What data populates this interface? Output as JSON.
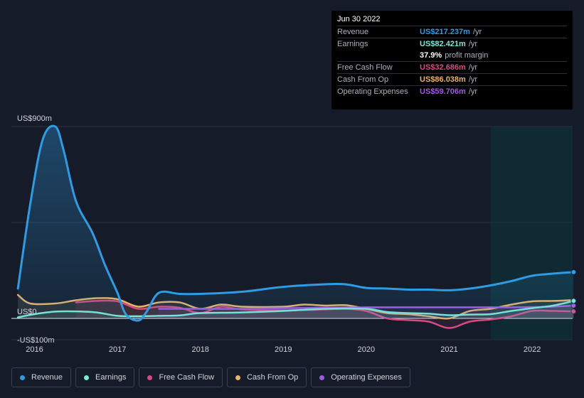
{
  "tooltip": {
    "date": "Jun 30 2022",
    "rows": [
      {
        "label": "Revenue",
        "value": "US$217.237m",
        "unit": "/yr",
        "color": "#2e9be3"
      },
      {
        "label": "Earnings",
        "value": "US$82.421m",
        "unit": "/yr",
        "color": "#7ee8d6"
      },
      {
        "label": "",
        "value": "37.9%",
        "unit": "profit margin",
        "color": "#ffffff"
      },
      {
        "label": "Free Cash Flow",
        "value": "US$32.686m",
        "unit": "/yr",
        "color": "#d84a82"
      },
      {
        "label": "Cash From Op",
        "value": "US$86.038m",
        "unit": "/yr",
        "color": "#e8b36a"
      },
      {
        "label": "Operating Expenses",
        "value": "US$59.706m",
        "unit": "/yr",
        "color": "#a259e8"
      }
    ]
  },
  "chart_data": {
    "type": "line",
    "y_ticks": [
      {
        "value": 900,
        "label": "US$900m"
      },
      {
        "value": 0,
        "label": "US$0"
      },
      {
        "value": -100,
        "label": "-US$100m"
      }
    ],
    "ylim": [
      -100,
      900
    ],
    "xlim": [
      2015.8,
      2022.5
    ],
    "x_ticks": [
      {
        "value": 2016,
        "label": "2016"
      },
      {
        "value": 2017,
        "label": "2017"
      },
      {
        "value": 2018,
        "label": "2018"
      },
      {
        "value": 2019,
        "label": "2019"
      },
      {
        "value": 2020,
        "label": "2020"
      },
      {
        "value": 2021,
        "label": "2021"
      },
      {
        "value": 2022,
        "label": "2022"
      }
    ],
    "highlight_range": [
      2021.5,
      2022.5
    ],
    "grid": true,
    "legend_position": "bottom",
    "series": [
      {
        "name": "Revenue",
        "color": "#2e9be3",
        "fill": true,
        "x": [
          2015.8,
          2015.95,
          2016.1,
          2016.25,
          2016.35,
          2016.5,
          2016.7,
          2016.85,
          2017.0,
          2017.1,
          2017.25,
          2017.35,
          2017.5,
          2017.75,
          2018.0,
          2018.5,
          2019.0,
          2019.5,
          2019.75,
          2020.0,
          2020.25,
          2020.5,
          2020.75,
          2021.0,
          2021.25,
          2021.5,
          2021.75,
          2022.0,
          2022.25,
          2022.5
        ],
        "y": [
          140,
          540,
          840,
          900,
          790,
          550,
          400,
          250,
          120,
          20,
          -10,
          30,
          120,
          115,
          115,
          125,
          148,
          160,
          160,
          143,
          140,
          135,
          135,
          132,
          140,
          155,
          175,
          200,
          210,
          217
        ]
      },
      {
        "name": "Earnings",
        "color": "#7ee8d6",
        "fill": false,
        "x": [
          2015.8,
          2016.0,
          2016.25,
          2016.5,
          2016.75,
          2017.0,
          2017.25,
          2017.5,
          2017.75,
          2018.0,
          2018.5,
          2019.0,
          2019.5,
          2020.0,
          2020.25,
          2020.5,
          2020.75,
          2021.0,
          2021.25,
          2021.5,
          2021.75,
          2022.0,
          2022.25,
          2022.5
        ],
        "y": [
          5,
          20,
          32,
          33,
          28,
          12,
          10,
          12,
          14,
          25,
          28,
          35,
          45,
          45,
          30,
          25,
          22,
          15,
          18,
          20,
          35,
          48,
          60,
          82
        ]
      },
      {
        "name": "Free Cash Flow",
        "color": "#d84a82",
        "fill": false,
        "x": [
          2016.5,
          2016.75,
          2017.0,
          2017.25,
          2017.5,
          2017.75,
          2018.0,
          2018.25,
          2018.5,
          2019.0,
          2019.5,
          2019.75,
          2020.0,
          2020.25,
          2020.5,
          2020.75,
          2021.0,
          2021.25,
          2021.5,
          2021.75,
          2022.0,
          2022.25,
          2022.5
        ],
        "y": [
          75,
          82,
          80,
          45,
          55,
          50,
          25,
          55,
          42,
          38,
          42,
          45,
          35,
          0,
          -8,
          -15,
          -45,
          -15,
          -5,
          10,
          35,
          35,
          33
        ]
      },
      {
        "name": "Cash From Op",
        "color": "#e8b36a",
        "fill": false,
        "x": [
          2015.8,
          2015.95,
          2016.25,
          2016.5,
          2016.75,
          2017.0,
          2017.25,
          2017.5,
          2017.75,
          2018.0,
          2018.25,
          2018.5,
          2019.0,
          2019.25,
          2019.5,
          2019.75,
          2020.0,
          2020.25,
          2020.5,
          2020.75,
          2021.0,
          2021.25,
          2021.5,
          2021.75,
          2022.0,
          2022.25,
          2022.5
        ],
        "y": [
          110,
          70,
          70,
          85,
          95,
          90,
          55,
          75,
          75,
          45,
          65,
          55,
          55,
          65,
          60,
          62,
          45,
          25,
          20,
          10,
          0,
          35,
          45,
          65,
          80,
          82,
          86
        ]
      },
      {
        "name": "Operating Expenses",
        "color": "#a259e8",
        "fill": false,
        "x": [
          2017.5,
          2018.0,
          2018.5,
          2019.0,
          2019.5,
          2020.0,
          2020.5,
          2021.0,
          2021.5,
          2022.0,
          2022.25,
          2022.5
        ],
        "y": [
          45,
          45,
          45,
          48,
          50,
          52,
          52,
          52,
          52,
          53,
          55,
          60
        ]
      }
    ]
  },
  "legend": [
    {
      "label": "Revenue",
      "color": "#2e9be3"
    },
    {
      "label": "Earnings",
      "color": "#7ee8d6"
    },
    {
      "label": "Free Cash Flow",
      "color": "#d84a82"
    },
    {
      "label": "Cash From Op",
      "color": "#e8b36a"
    },
    {
      "label": "Operating Expenses",
      "color": "#a259e8"
    }
  ]
}
